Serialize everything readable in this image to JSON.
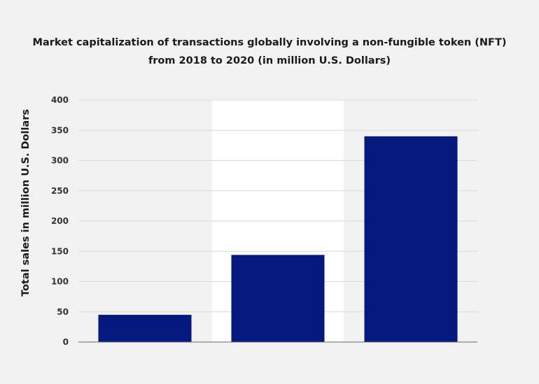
{
  "chart_data": {
    "type": "bar",
    "title_lines": [
      "Market capitalization of transactions globally involving a non-fungible token (NFT)",
      "from 2018 to 2020 (in million U.S. Dollars)"
    ],
    "xlabel": "",
    "ylabel": "Total sales in million U.S. Dollars",
    "categories": [
      "",
      "",
      ""
    ],
    "values": [
      45,
      144,
      340
    ],
    "ylim": [
      0,
      400
    ],
    "yticks": [
      0,
      50,
      100,
      150,
      200,
      250,
      300,
      350,
      400
    ],
    "highlight_index": 1,
    "grid": true,
    "legend": "none",
    "colors": {
      "bar": "#04187e",
      "background": "#f2f2f2",
      "highlight": "#ffffff",
      "grid": "#d9d9d9",
      "axis": "#666666"
    }
  }
}
